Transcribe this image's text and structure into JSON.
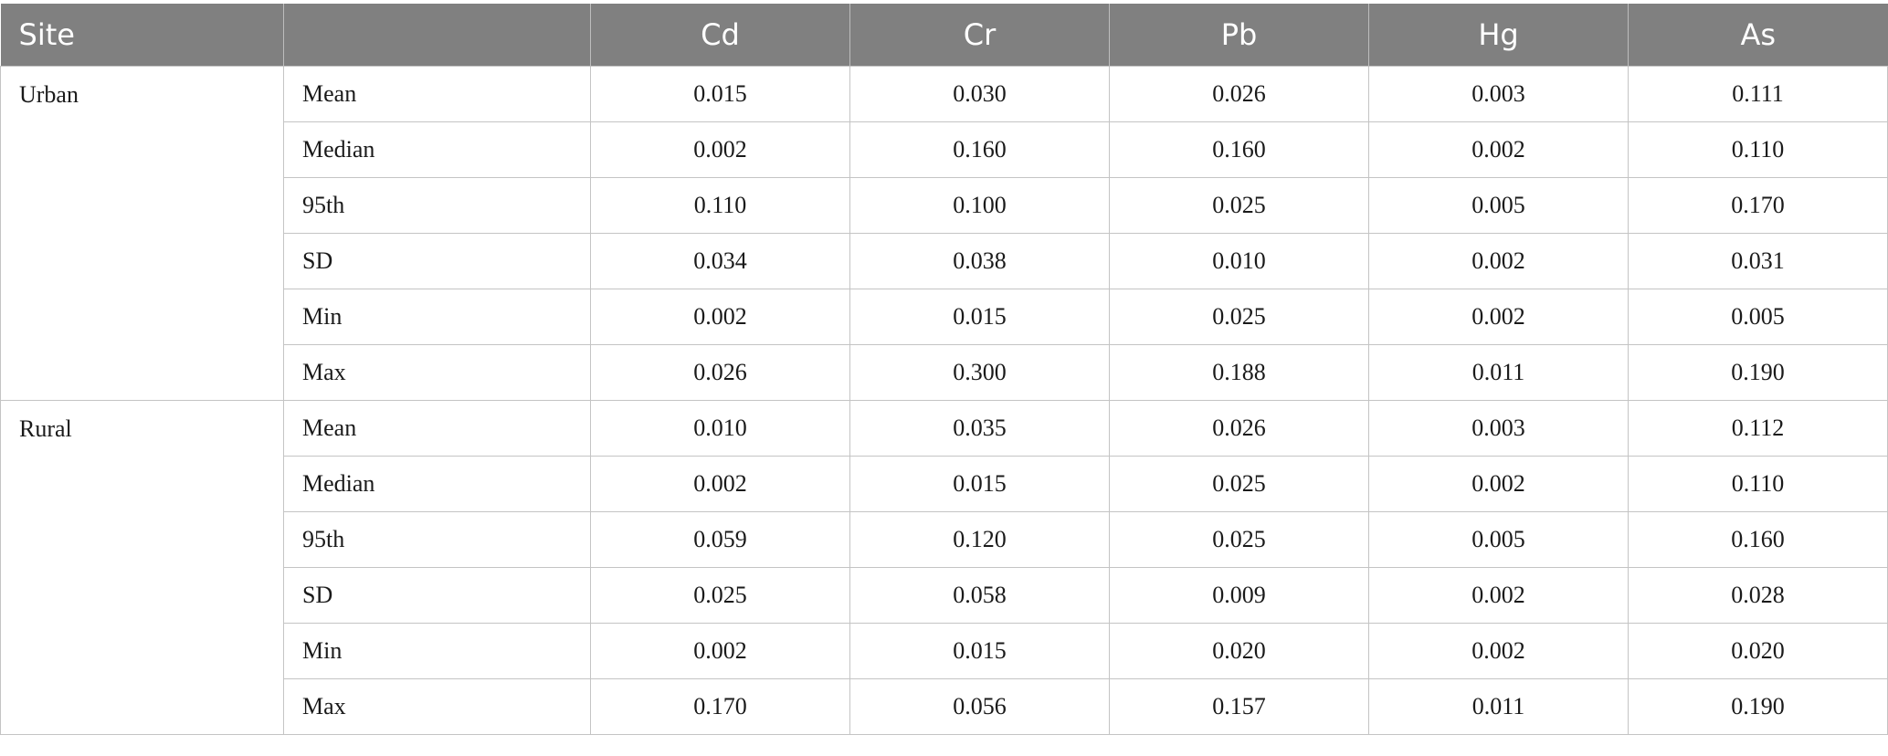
{
  "table": {
    "headers": [
      "Site",
      "",
      "Cd",
      "Cr",
      "Pb",
      "Hg",
      "As"
    ],
    "groups": [
      {
        "site": "Urban",
        "rows": [
          {
            "stat": "Mean",
            "values": [
              "0.015",
              "0.030",
              "0.026",
              "0.003",
              "0.111"
            ]
          },
          {
            "stat": "Median",
            "values": [
              "0.002",
              "0.160",
              "0.160",
              "0.002",
              "0.110"
            ]
          },
          {
            "stat": "95th",
            "values": [
              "0.110",
              "0.100",
              "0.025",
              "0.005",
              "0.170"
            ]
          },
          {
            "stat": "SD",
            "values": [
              "0.034",
              "0.038",
              "0.010",
              "0.002",
              "0.031"
            ]
          },
          {
            "stat": "Min",
            "values": [
              "0.002",
              "0.015",
              "0.025",
              "0.002",
              "0.005"
            ]
          },
          {
            "stat": "Max",
            "values": [
              "0.026",
              "0.300",
              "0.188",
              "0.011",
              "0.190"
            ]
          }
        ]
      },
      {
        "site": "Rural",
        "rows": [
          {
            "stat": "Mean",
            "values": [
              "0.010",
              "0.035",
              "0.026",
              "0.003",
              "0.112"
            ]
          },
          {
            "stat": "Median",
            "values": [
              "0.002",
              "0.015",
              "0.025",
              "0.002",
              "0.110"
            ]
          },
          {
            "stat": "95th",
            "values": [
              "0.059",
              "0.120",
              "0.025",
              "0.005",
              "0.160"
            ]
          },
          {
            "stat": "SD",
            "values": [
              "0.025",
              "0.058",
              "0.009",
              "0.002",
              "0.028"
            ]
          },
          {
            "stat": "Min",
            "values": [
              "0.002",
              "0.015",
              "0.020",
              "0.002",
              "0.020"
            ]
          },
          {
            "stat": "Max",
            "values": [
              "0.170",
              "0.056",
              "0.157",
              "0.011",
              "0.190"
            ]
          }
        ]
      }
    ]
  }
}
